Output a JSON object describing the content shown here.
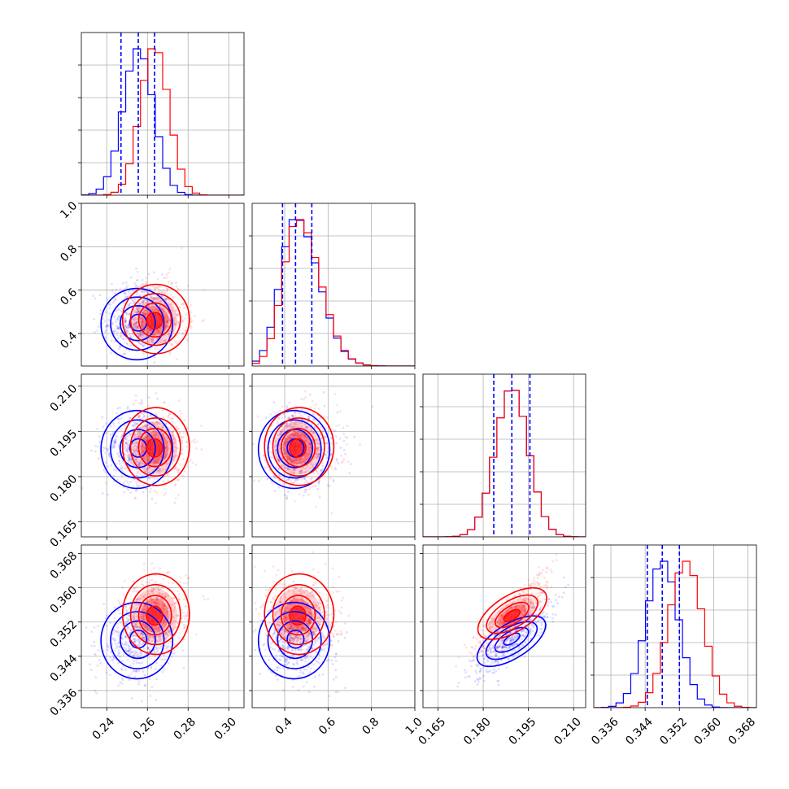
{
  "chart_data": {
    "type": "corner",
    "grid": true,
    "series": [
      {
        "name": "",
        "color": "#0000ff",
        "mean": [
          0.2555,
          0.45,
          0.1895,
          0.348
        ],
        "std": [
          0.0075,
          0.07,
          0.0055,
          0.0038
        ]
      },
      {
        "name": "",
        "color": "#ff0000",
        "mean": [
          0.2635,
          0.46,
          0.1895,
          0.3535
        ],
        "std": [
          0.007,
          0.068,
          0.0055,
          0.004
        ]
      }
    ],
    "correlation": [
      {
        "pair": [
          1,
          0
        ],
        "blue": -0.05,
        "red": 0.05
      },
      {
        "pair": [
          2,
          0
        ],
        "blue": 0.0,
        "red": 0.0
      },
      {
        "pair": [
          2,
          1
        ],
        "blue": 0.0,
        "red": 0.0
      },
      {
        "pair": [
          3,
          0
        ],
        "blue": 0.2,
        "red": 0.15
      },
      {
        "pair": [
          3,
          1
        ],
        "blue": -0.05,
        "red": -0.1
      },
      {
        "pair": [
          3,
          2
        ],
        "blue": 0.85,
        "red": 0.85
      }
    ],
    "quantile_lines": [
      [
        0.247,
        0.2555,
        0.2635
      ],
      [
        0.39,
        0.45,
        0.525
      ],
      [
        0.1835,
        0.1895,
        0.1955
      ],
      [
        0.3445,
        0.348,
        0.352
      ]
    ],
    "axis_ranges": [
      [
        0.2275,
        0.3075
      ],
      [
        0.25,
        1.0
      ],
      [
        0.16,
        0.214
      ],
      [
        0.332,
        0.37
      ]
    ],
    "ticks": [
      [
        "0.24",
        "0.26",
        "0.28",
        "0.30"
      ],
      [
        "0.4",
        "0.6",
        "0.8",
        "1.0"
      ],
      [
        "0.165",
        "0.180",
        "0.195",
        "0.210"
      ],
      [
        "0.336",
        "0.344",
        "0.352",
        "0.360",
        "0.368"
      ]
    ],
    "tick_values": [
      [
        0.24,
        0.26,
        0.28,
        0.3
      ],
      [
        0.4,
        0.6,
        0.8,
        1.0
      ],
      [
        0.165,
        0.18,
        0.195,
        0.21
      ],
      [
        0.336,
        0.344,
        0.352,
        0.36,
        0.368
      ]
    ],
    "hist_bins": 22
  }
}
